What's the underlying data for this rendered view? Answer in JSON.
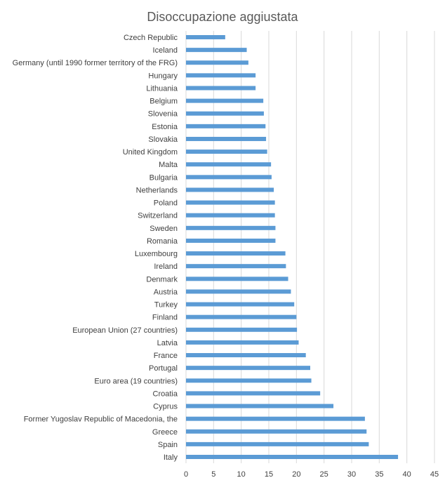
{
  "chart_data": {
    "type": "bar",
    "orientation": "horizontal",
    "title": "Disoccupazione aggiustata",
    "xlabel": "",
    "ylabel": "",
    "categories": [
      "Czech Republic",
      "Iceland",
      "Germany (until 1990 former territory of the FRG)",
      "Hungary",
      "Lithuania",
      "Belgium",
      "Slovenia",
      "Estonia",
      "Slovakia",
      "United Kingdom",
      "Malta",
      "Bulgaria",
      "Netherlands",
      "Poland",
      "Switzerland",
      "Sweden",
      "Romania",
      "Luxembourg",
      "Ireland",
      "Denmark",
      "Austria",
      "Turkey",
      "Finland",
      "European Union (27 countries)",
      "Latvia",
      "France",
      "Portugal",
      "Euro area (19 countries)",
      "Croatia",
      "Cyprus",
      "Former Yugoslav Republic of Macedonia, the",
      "Greece",
      "Spain",
      "Italy"
    ],
    "values": [
      7.1,
      11.0,
      11.3,
      12.6,
      12.6,
      14.0,
      14.1,
      14.4,
      14.5,
      14.7,
      15.4,
      15.5,
      15.9,
      16.1,
      16.1,
      16.2,
      16.2,
      18.0,
      18.1,
      18.5,
      19.0,
      19.6,
      20.0,
      20.1,
      20.4,
      21.7,
      22.5,
      22.7,
      24.3,
      26.7,
      32.4,
      32.7,
      33.1,
      38.4
    ],
    "xlim": [
      0,
      45
    ],
    "xticks": [
      0,
      5,
      10,
      15,
      20,
      25,
      30,
      35,
      40,
      45
    ],
    "grid": true,
    "bar_color": "#5b9bd5",
    "grid_color": "#d9d9d9",
    "text_color": "#404040",
    "legend": "none"
  }
}
